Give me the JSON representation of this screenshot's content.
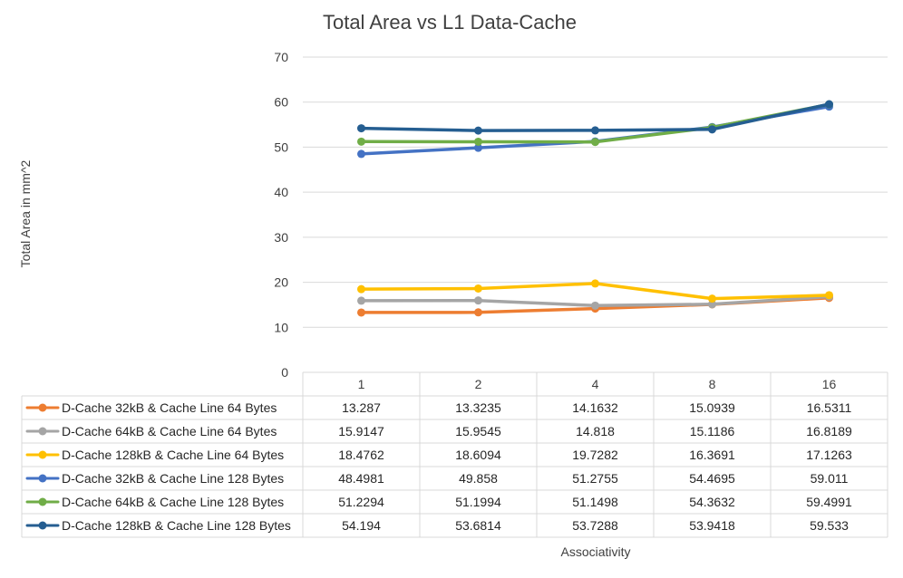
{
  "chart_data": {
    "type": "line",
    "title": "Total Area vs L1 Data-Cache",
    "xlabel": "Associativity",
    "ylabel": "Total Area in mm^2",
    "categories": [
      "1",
      "2",
      "4",
      "8",
      "16"
    ],
    "yticks": [
      "0",
      "10",
      "20",
      "30",
      "40",
      "50",
      "60",
      "70"
    ],
    "ylim": [
      0,
      70
    ],
    "grid": true,
    "legend": "data-table",
    "series": [
      {
        "name": "D-Cache 32kB & Cache Line 64 Bytes",
        "color": "#ED7D31",
        "values": [
          13.287,
          13.3235,
          14.1632,
          15.0939,
          16.5311
        ],
        "labels": [
          "13.287",
          "13.3235",
          "14.1632",
          "15.0939",
          "16.5311"
        ]
      },
      {
        "name": "D-Cache 64kB & Cache Line 64 Bytes",
        "color": "#A5A5A5",
        "values": [
          15.9147,
          15.9545,
          14.818,
          15.1186,
          16.8189
        ],
        "labels": [
          "15.9147",
          "15.9545",
          "14.818",
          "15.1186",
          "16.8189"
        ]
      },
      {
        "name": "D-Cache 128kB & Cache Line 64 Bytes",
        "color": "#FFC000",
        "values": [
          18.4762,
          18.6094,
          19.7282,
          16.3691,
          17.1263
        ],
        "labels": [
          "18.4762",
          "18.6094",
          "19.7282",
          "16.3691",
          "17.1263"
        ]
      },
      {
        "name": "D-Cache 32kB & Cache Line 128 Bytes",
        "color": "#4472C4",
        "values": [
          48.4981,
          49.858,
          51.2755,
          54.4695,
          59.011
        ],
        "labels": [
          "48.4981",
          "49.858",
          "51.2755",
          "54.4695",
          "59.011"
        ]
      },
      {
        "name": "D-Cache 64kB & Cache Line 128 Bytes",
        "color": "#70AD47",
        "values": [
          51.2294,
          51.1994,
          51.1498,
          54.3632,
          59.4991
        ],
        "labels": [
          "51.2294",
          "51.1994",
          "51.1498",
          "54.3632",
          "59.4991"
        ]
      },
      {
        "name": "D-Cache 128kB & Cache Line 128 Bytes",
        "color": "#255E91",
        "values": [
          54.194,
          53.6814,
          53.7288,
          53.9418,
          59.533
        ],
        "labels": [
          "54.194",
          "53.6814",
          "53.7288",
          "53.9418",
          "59.533"
        ]
      }
    ]
  }
}
